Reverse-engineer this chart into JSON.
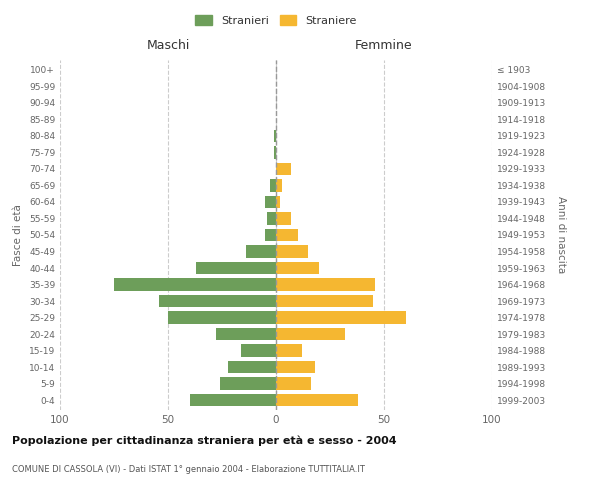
{
  "age_groups": [
    "0-4",
    "5-9",
    "10-14",
    "15-19",
    "20-24",
    "25-29",
    "30-34",
    "35-39",
    "40-44",
    "45-49",
    "50-54",
    "55-59",
    "60-64",
    "65-69",
    "70-74",
    "75-79",
    "80-84",
    "85-89",
    "90-94",
    "95-99",
    "100+"
  ],
  "birth_years": [
    "1999-2003",
    "1994-1998",
    "1989-1993",
    "1984-1988",
    "1979-1983",
    "1974-1978",
    "1969-1973",
    "1964-1968",
    "1959-1963",
    "1954-1958",
    "1949-1953",
    "1944-1948",
    "1939-1943",
    "1934-1938",
    "1929-1933",
    "1924-1928",
    "1919-1923",
    "1914-1918",
    "1909-1913",
    "1904-1908",
    "≤ 1903"
  ],
  "males": [
    40,
    26,
    22,
    16,
    28,
    50,
    54,
    75,
    37,
    14,
    5,
    4,
    5,
    3,
    0,
    1,
    1,
    0,
    0,
    0,
    0
  ],
  "females": [
    38,
    16,
    18,
    12,
    32,
    60,
    45,
    46,
    20,
    15,
    10,
    7,
    2,
    3,
    7,
    0,
    0,
    0,
    0,
    0,
    0
  ],
  "male_color": "#6d9e5a",
  "female_color": "#f5b731",
  "title": "Popolazione per cittadinanza straniera per età e sesso - 2004",
  "subtitle": "COMUNE DI CASSOLA (VI) - Dati ISTAT 1° gennaio 2004 - Elaborazione TUTTITALIA.IT",
  "left_label": "Maschi",
  "right_label": "Femmine",
  "left_axis_label": "Fasce di età",
  "right_axis_label": "Anni di nascita",
  "legend_male": "Stranieri",
  "legend_female": "Straniere",
  "xlim": 100,
  "background_color": "#ffffff",
  "grid_color": "#cccccc"
}
